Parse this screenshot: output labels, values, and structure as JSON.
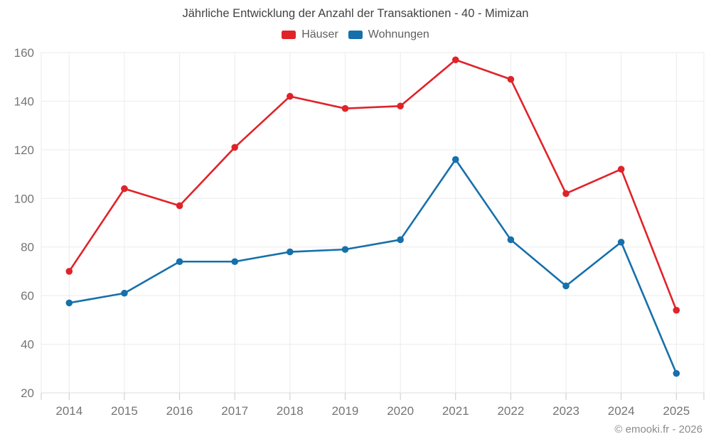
{
  "chart_data": {
    "type": "line",
    "title": "Jährliche Entwicklung der Anzahl der Transaktionen - 40 - Mimizan",
    "categories": [
      "2014",
      "2015",
      "2016",
      "2017",
      "2018",
      "2019",
      "2020",
      "2021",
      "2022",
      "2023",
      "2024",
      "2025"
    ],
    "series": [
      {
        "name": "Häuser",
        "color": "#e02329",
        "values": [
          70,
          104,
          97,
          121,
          142,
          137,
          138,
          157,
          149,
          102,
          112,
          54
        ]
      },
      {
        "name": "Wohnungen",
        "color": "#1670ab",
        "values": [
          57,
          61,
          74,
          74,
          78,
          79,
          83,
          116,
          83,
          64,
          82,
          28
        ]
      }
    ],
    "xlabel": "",
    "ylabel": "",
    "ylim": [
      20,
      160
    ],
    "ytick_step": 20,
    "yticks": [
      20,
      40,
      60,
      80,
      100,
      120,
      140,
      160
    ],
    "grid": true,
    "legend_position": "top"
  },
  "footer": {
    "credit": "© emooki.fr - 2026"
  },
  "style_colors": {
    "grid_line": "#ebebeb",
    "axis_line": "#dcdcdc",
    "tick": "#c9c9c9",
    "axis_label": "#757575",
    "title": "#424242",
    "legend_text": "#5f5f5f"
  }
}
